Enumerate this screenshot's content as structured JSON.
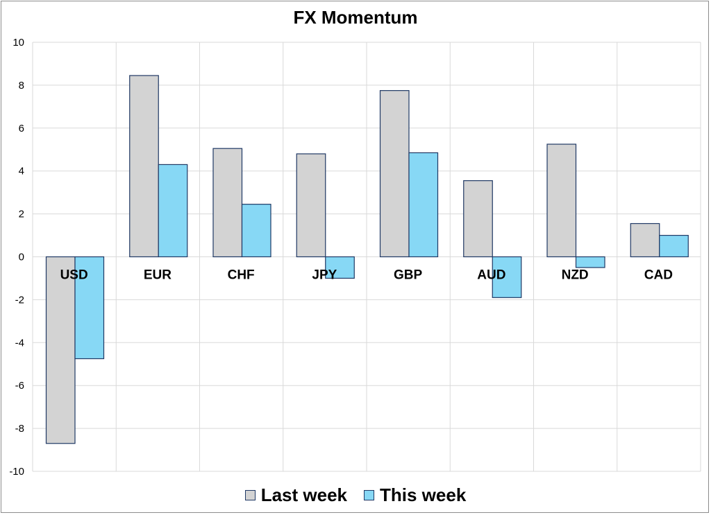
{
  "chart_data": {
    "type": "bar",
    "title": "FX Momentum",
    "xlabel": "",
    "ylabel": "",
    "ylim": [
      -10,
      10
    ],
    "yticks": [
      "10",
      "8",
      "6",
      "4",
      "2",
      "0",
      "-2",
      "-4",
      "-6",
      "-8",
      "-10"
    ],
    "categories": [
      "USD",
      "EUR",
      "CHF",
      "JPY",
      "GBP",
      "AUD",
      "NZD",
      "CAD"
    ],
    "series": [
      {
        "name": "Last week",
        "color": "#d3d3d3",
        "values": [
          -8.7,
          8.45,
          5.05,
          4.8,
          7.75,
          3.55,
          5.25,
          1.55
        ]
      },
      {
        "name": "This week",
        "color": "#87d8f5",
        "values": [
          -4.75,
          4.3,
          2.45,
          -1.0,
          4.85,
          -1.9,
          -0.5,
          1.0
        ]
      }
    ],
    "grid": true,
    "legend": "bottom"
  }
}
